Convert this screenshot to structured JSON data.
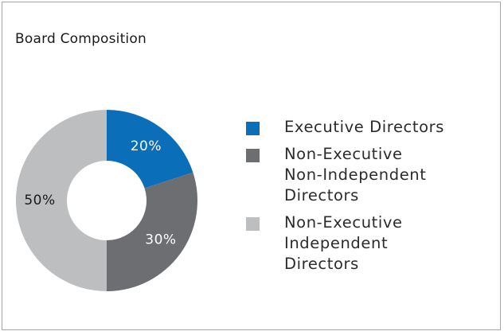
{
  "title": "Board Composition",
  "chart_data": {
    "type": "pie",
    "donut": true,
    "title": "Board Composition",
    "slices": [
      {
        "label": "Executive Directors",
        "value": 20,
        "value_label": "20%",
        "color": "#0b6eb8",
        "label_color": "#ffffff"
      },
      {
        "label": "Non-Executive Non-Independent Directors",
        "value": 30,
        "value_label": "30%",
        "color": "#6d6e71",
        "label_color": "#ffffff"
      },
      {
        "label": "Non-Executive Independent Directors",
        "value": 50,
        "value_label": "50%",
        "color": "#bcbec0",
        "label_color": "#1a1a1a"
      }
    ],
    "legend_position": "right",
    "start_angle_deg": 0,
    "direction": "clockwise"
  },
  "legend": [
    {
      "lines": [
        "Executive Directors"
      ],
      "color": "#0b6eb8"
    },
    {
      "lines": [
        "Non-Executive",
        "Non-Independent",
        "Directors"
      ],
      "color": "#6d6e71"
    },
    {
      "lines": [
        "Non-Executive",
        "Independent",
        "Directors"
      ],
      "color": "#bcbec0"
    }
  ]
}
